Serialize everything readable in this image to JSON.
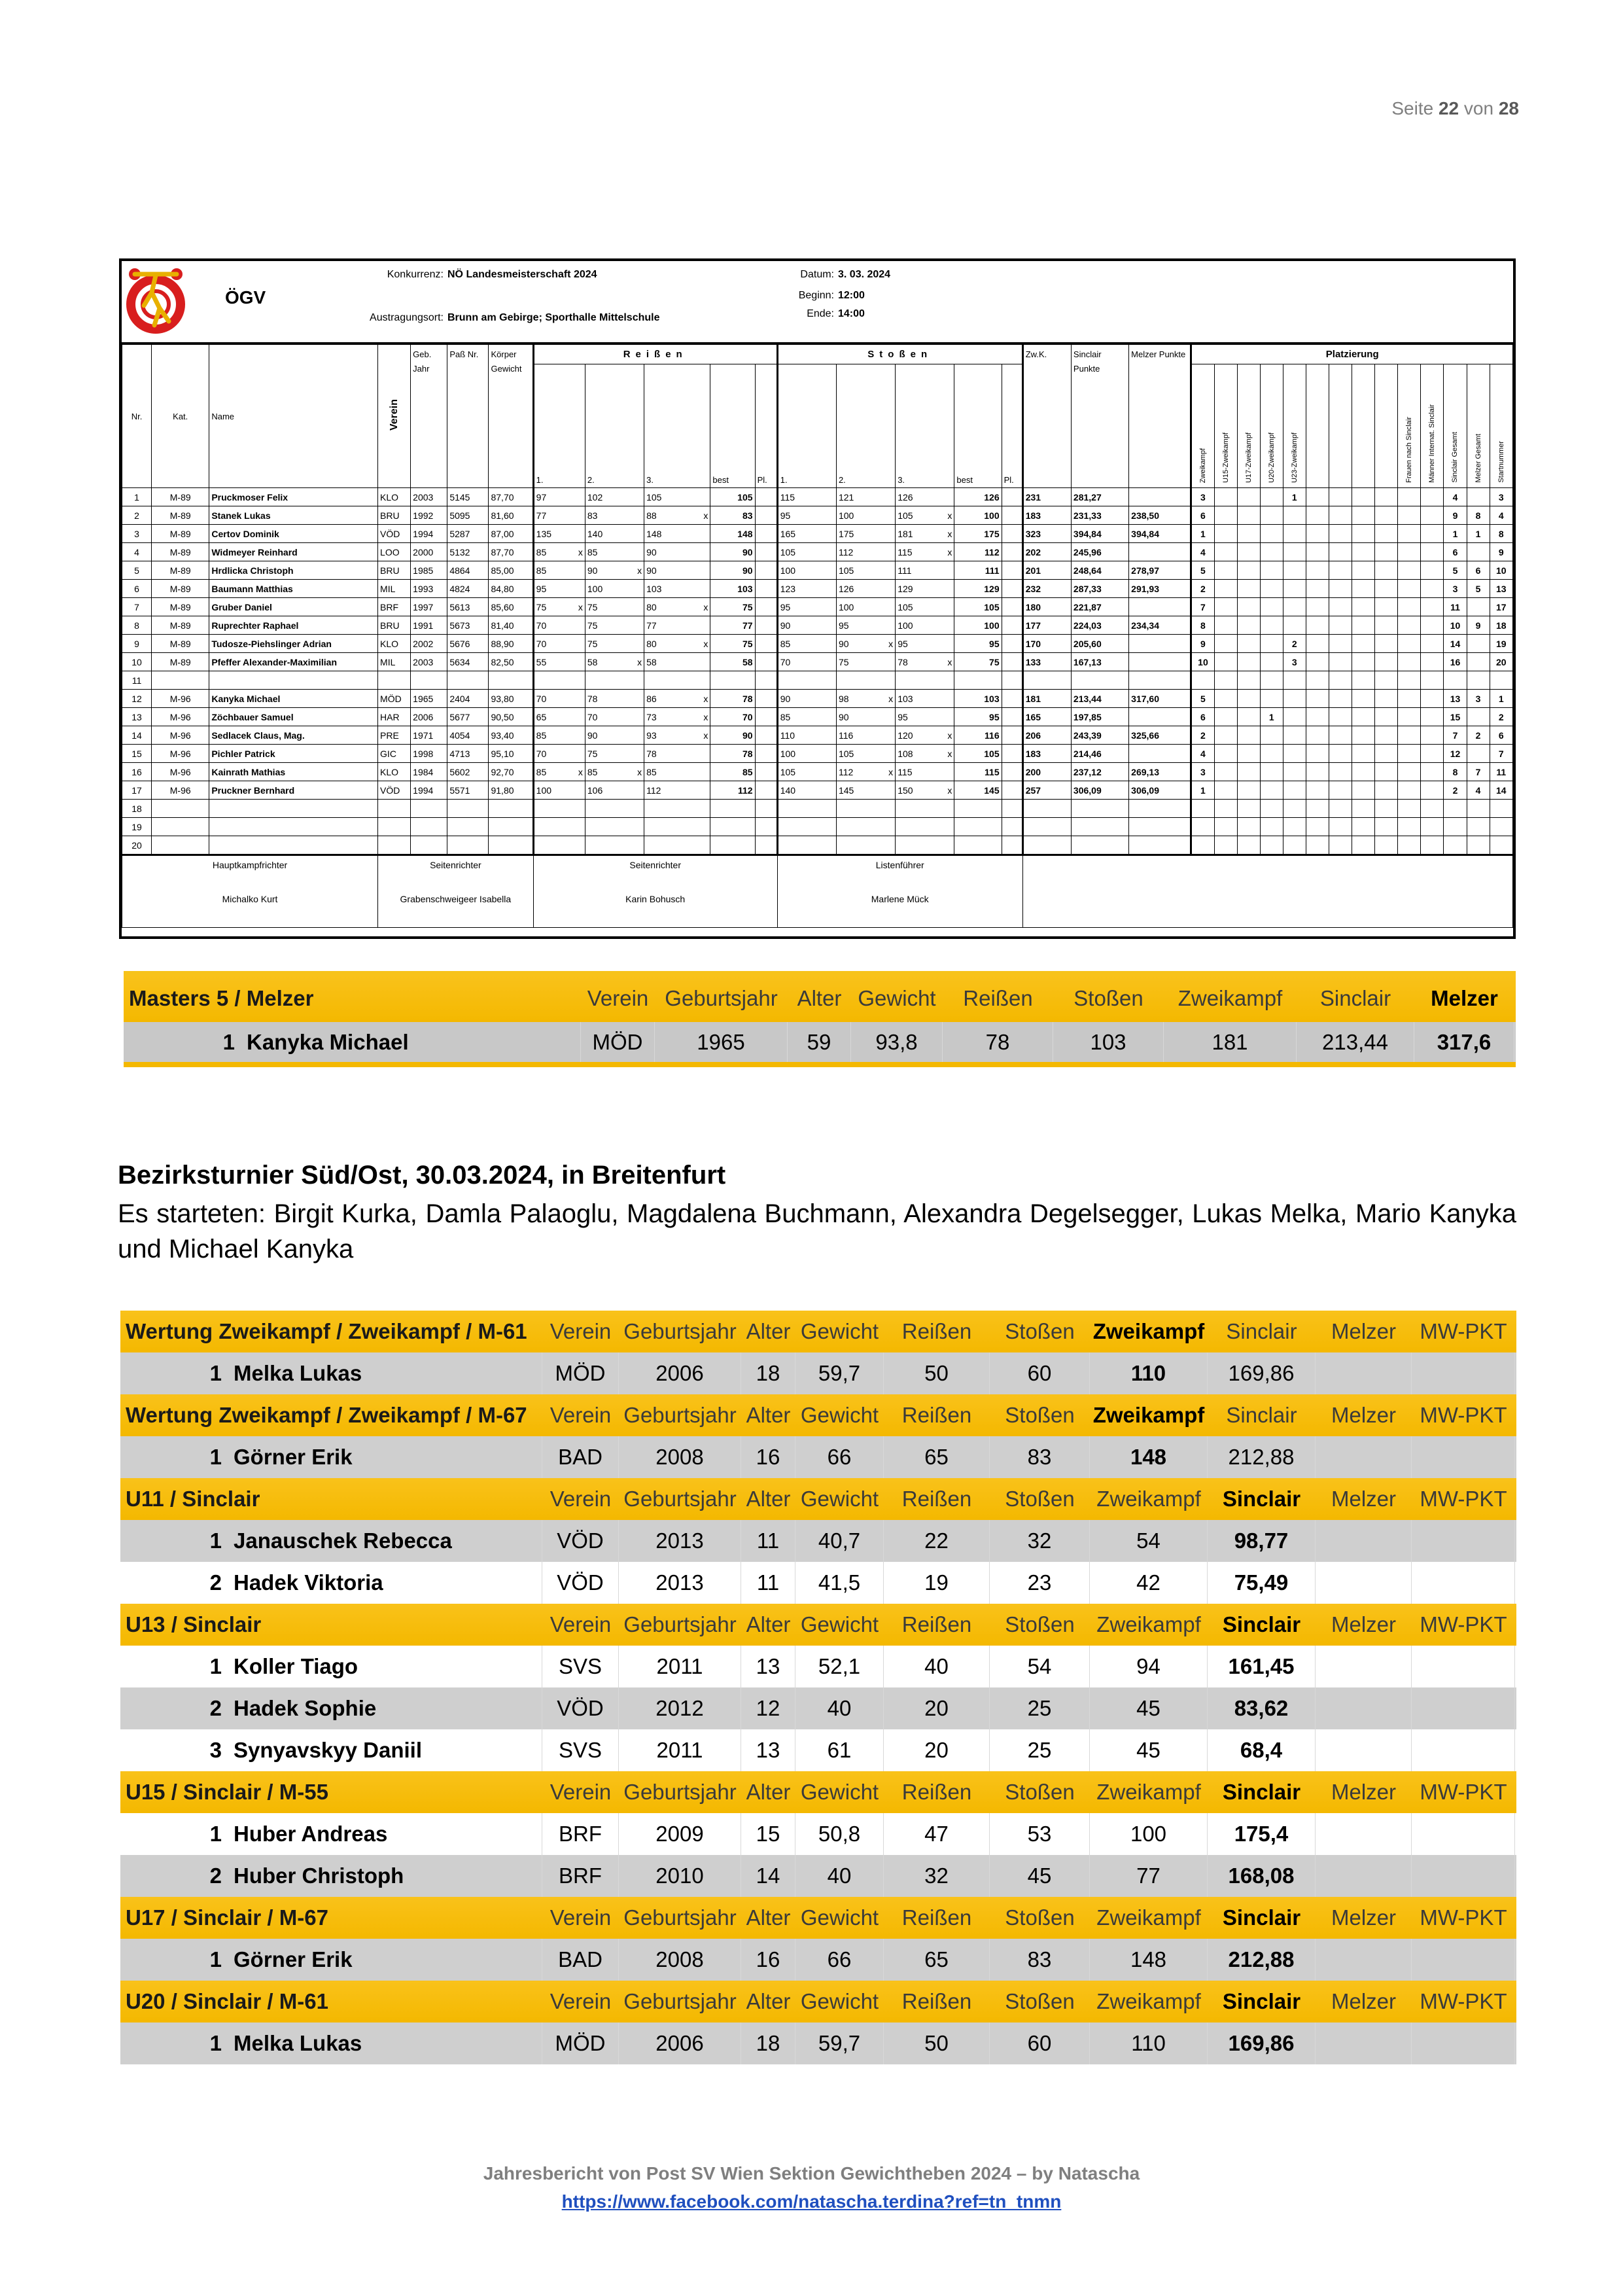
{
  "page": {
    "label": "Seite",
    "current": "22",
    "of": "von",
    "total": "28"
  },
  "protocol": {
    "org": "ÖGV",
    "fields": [
      {
        "label": "Konkurrenz:",
        "value": "NÖ Landesmeisterschaft 2024"
      },
      {
        "label": "Austragungsort:",
        "value": "Brunn am Gebirge; Sporthalle Mittelschule"
      },
      {
        "label": "Datum:",
        "value": "3. 03. 2024"
      },
      {
        "label": "Beginn:",
        "value": "12:00"
      },
      {
        "label": "Ende:",
        "value": "14:00"
      }
    ],
    "head": {
      "nr": "Nr.",
      "kat": "Kat.",
      "name": "Name",
      "verein": "Verein",
      "jahr": "Geb. Jahr",
      "pass": "Paß Nr.",
      "gewicht": "Körper Gewicht",
      "reissen": "Reißen",
      "stossen": "Stoßen",
      "attempts": [
        "1.",
        "2.",
        "3.",
        "best",
        "Pl."
      ],
      "zwk": "Zw.K.",
      "sinclair": "Sinclair Punkte",
      "melzer": "Melzer Punkte",
      "platz": "Platzierung",
      "platz_cols": [
        "Zweikampf",
        "U15-Zweikampf",
        "U17-Zweikampf",
        "U20-Zweikampf",
        "U23-Zweikampf",
        null,
        null,
        null,
        null,
        "Frauen nach Sinclair",
        "Männer Internat. Sinclair",
        "Sinclair Gesamt",
        "Melzer Gesamt",
        "Startnummer"
      ]
    },
    "rows": [
      {
        "cells": [
          "1",
          "M-89",
          "Pruckmoser Felix",
          "KLO",
          "2003",
          "5145",
          "87,70",
          "97",
          "102",
          "105",
          "105",
          null,
          "115",
          "121",
          "126",
          "126",
          null,
          "231",
          "281,27",
          null
        ],
        "platz": [
          "3",
          null,
          null,
          null,
          "1",
          null,
          null,
          null,
          null,
          null,
          null,
          "4",
          null,
          "3"
        ]
      },
      {
        "cells": [
          "2",
          "M-89",
          "Stanek Lukas",
          "BRU",
          "1992",
          "5095",
          "81,60",
          "77",
          "83",
          "88 x",
          "83",
          null,
          "95",
          "100",
          "105 x",
          "100",
          null,
          "183",
          "231,33",
          "238,50"
        ],
        "platz": [
          "6",
          null,
          null,
          null,
          null,
          null,
          null,
          null,
          null,
          null,
          null,
          "9",
          "8",
          "4"
        ]
      },
      {
        "cells": [
          "3",
          "M-89",
          "Certov Dominik",
          "VÖD",
          "1994",
          "5287",
          "87,00",
          "135",
          "140",
          "148",
          "148",
          null,
          "165",
          "175",
          "181 x",
          "175",
          null,
          "323",
          "394,84",
          "394,84"
        ],
        "platz": [
          "1",
          null,
          null,
          null,
          null,
          null,
          null,
          null,
          null,
          null,
          null,
          "1",
          "1",
          "8"
        ]
      },
      {
        "cells": [
          "4",
          "M-89",
          "Widmeyer Reinhard",
          "LOO",
          "2000",
          "5132",
          "87,70",
          "85 x",
          "85",
          "90",
          "90",
          null,
          "105",
          "112",
          "115 x",
          "112",
          null,
          "202",
          "245,96",
          null
        ],
        "platz": [
          "4",
          null,
          null,
          null,
          null,
          null,
          null,
          null,
          null,
          null,
          null,
          "6",
          null,
          "9"
        ]
      },
      {
        "cells": [
          "5",
          "M-89",
          "Hrdlicka Christoph",
          "BRU",
          "1985",
          "4864",
          "85,00",
          "85",
          "90 x",
          "90",
          "90",
          null,
          "100",
          "105",
          "111",
          "111",
          null,
          "201",
          "248,64",
          "278,97"
        ],
        "platz": [
          "5",
          null,
          null,
          null,
          null,
          null,
          null,
          null,
          null,
          null,
          null,
          "5",
          "6",
          "10"
        ]
      },
      {
        "cells": [
          "6",
          "M-89",
          "Baumann Matthias",
          "MIL",
          "1993",
          "4824",
          "84,80",
          "95",
          "100",
          "103",
          "103",
          null,
          "123",
          "126",
          "129",
          "129",
          null,
          "232",
          "287,33",
          "291,93"
        ],
        "platz": [
          "2",
          null,
          null,
          null,
          null,
          null,
          null,
          null,
          null,
          null,
          null,
          "3",
          "5",
          "13"
        ]
      },
      {
        "cells": [
          "7",
          "M-89",
          "Gruber Daniel",
          "BRF",
          "1997",
          "5613",
          "85,60",
          "75 x",
          "75",
          "80 x",
          "75",
          null,
          "95",
          "100",
          "105",
          "105",
          null,
          "180",
          "221,87",
          null
        ],
        "platz": [
          "7",
          null,
          null,
          null,
          null,
          null,
          null,
          null,
          null,
          null,
          null,
          "11",
          null,
          "17"
        ]
      },
      {
        "cells": [
          "8",
          "M-89",
          "Ruprechter Raphael",
          "BRU",
          "1991",
          "5673",
          "81,40",
          "70",
          "75",
          "77",
          "77",
          null,
          "90",
          "95",
          "100",
          "100",
          null,
          "177",
          "224,03",
          "234,34"
        ],
        "platz": [
          "8",
          null,
          null,
          null,
          null,
          null,
          null,
          null,
          null,
          null,
          null,
          "10",
          "9",
          "18"
        ]
      },
      {
        "cells": [
          "9",
          "M-89",
          "Tudosze-Piehslinger Adrian",
          "KLO",
          "2002",
          "5676",
          "88,90",
          "70",
          "75",
          "80 x",
          "75",
          null,
          "85",
          "90 x",
          "95",
          "95",
          null,
          "170",
          "205,60",
          null
        ],
        "platz": [
          "9",
          null,
          null,
          null,
          "2",
          null,
          null,
          null,
          null,
          null,
          null,
          "14",
          null,
          "19"
        ]
      },
      {
        "cells": [
          "10",
          "M-89",
          "Pfeffer Alexander-Maximilian",
          "MIL",
          "2003",
          "5634",
          "82,50",
          "55",
          "58 x",
          "58",
          "58",
          null,
          "70",
          "75",
          "78 x",
          "75",
          null,
          "133",
          "167,13",
          null
        ],
        "platz": [
          "10",
          null,
          null,
          null,
          "3",
          null,
          null,
          null,
          null,
          null,
          null,
          "16",
          null,
          "20"
        ]
      },
      {
        "cells": [
          "11"
        ]
      },
      {
        "cells": [
          "12",
          "M-96",
          "Kanyka Michael",
          "MÖD",
          "1965",
          "2404",
          "93,80",
          "70",
          "78",
          "86 x",
          "78",
          null,
          "90",
          "98 x",
          "103",
          "103",
          null,
          "181",
          "213,44",
          "317,60"
        ],
        "platz": [
          "5",
          null,
          null,
          null,
          null,
          null,
          null,
          null,
          null,
          null,
          null,
          "13",
          "3",
          "1"
        ]
      },
      {
        "cells": [
          "13",
          "M-96",
          "Zöchbauer Samuel",
          "HAR",
          "2006",
          "5677",
          "90,50",
          "65",
          "70",
          "73 x",
          "70",
          null,
          "85",
          "90",
          "95",
          "95",
          null,
          "165",
          "197,85",
          null
        ],
        "platz": [
          "6",
          null,
          null,
          "1",
          null,
          null,
          null,
          null,
          null,
          null,
          null,
          "15",
          null,
          "2"
        ]
      },
      {
        "cells": [
          "14",
          "M-96",
          "Sedlacek Claus, Mag.",
          "PRE",
          "1971",
          "4054",
          "93,40",
          "85",
          "90",
          "93 x",
          "90",
          null,
          "110",
          "116",
          "120 x",
          "116",
          null,
          "206",
          "243,39",
          "325,66"
        ],
        "platz": [
          "2",
          null,
          null,
          null,
          null,
          null,
          null,
          null,
          null,
          null,
          null,
          "7",
          "2",
          "6"
        ]
      },
      {
        "cells": [
          "15",
          "M-96",
          "Pichler Patrick",
          "GIC",
          "1998",
          "4713",
          "95,10",
          "70",
          "75",
          "78",
          "78",
          null,
          "100",
          "105",
          "108 x",
          "105",
          null,
          "183",
          "214,46",
          null
        ],
        "platz": [
          "4",
          null,
          null,
          null,
          null,
          null,
          null,
          null,
          null,
          null,
          null,
          "12",
          null,
          "7"
        ]
      },
      {
        "cells": [
          "16",
          "M-96",
          "Kainrath Mathias",
          "KLO",
          "1984",
          "5602",
          "92,70",
          "85 x",
          "85 x",
          "85",
          "85",
          null,
          "105",
          "112 x",
          "115",
          "115",
          null,
          "200",
          "237,12",
          "269,13"
        ],
        "platz": [
          "3",
          null,
          null,
          null,
          null,
          null,
          null,
          null,
          null,
          null,
          null,
          "8",
          "7",
          "11"
        ]
      },
      {
        "cells": [
          "17",
          "M-96",
          "Pruckner Bernhard",
          "VÖD",
          "1994",
          "5571",
          "91,80",
          "100",
          "106",
          "112",
          "112",
          null,
          "140",
          "145",
          "150 x",
          "145",
          null,
          "257",
          "306,09",
          "306,09"
        ],
        "platz": [
          "1",
          null,
          null,
          null,
          null,
          null,
          null,
          null,
          null,
          null,
          null,
          "2",
          "4",
          "14"
        ]
      },
      {
        "cells": [
          "18"
        ]
      },
      {
        "cells": [
          "19"
        ]
      },
      {
        "cells": [
          "20"
        ]
      }
    ],
    "officials": [
      {
        "role": "Hauptkampfrichter",
        "name": "Michalko Kurt"
      },
      {
        "role": "Seitenrichter",
        "name": "Grabenschweigeer Isabella"
      },
      {
        "role": "Seitenrichter",
        "name": "Karin Bohusch"
      },
      {
        "role": "Listenführer",
        "name": "Marlene Mück"
      }
    ]
  },
  "masters": {
    "title": "Masters 5 / Melzer",
    "bold": "Melzer",
    "columns": [
      "Verein",
      "Geburtsjahr",
      "Alter",
      "Gewicht",
      "Reißen",
      "Stoßen",
      "Zweikampf",
      "Sinclair",
      "Melzer"
    ],
    "rows": [
      {
        "rank": "1",
        "name": "Kanyka Michael",
        "bg": "#c8c8c8",
        "cells": [
          "MÖD",
          "1965",
          "59",
          "93,8",
          "78",
          "103",
          "181",
          "213,44",
          "317,6"
        ]
      }
    ]
  },
  "report": {
    "heading": "Bezirksturnier Süd/Ost, 30.03.2024, in Breitenfurt",
    "text": "Es starteten: Birgit Kurka, Damla Palaoglu, Magdalena Buchmann, Alexandra Degelsegger, Lukas Melka, Mario Kanyka und Michael Kanyka"
  },
  "results": {
    "columns": [
      "Verein",
      "Geburtsjahr",
      "Alter",
      "Gewicht",
      "Reißen",
      "Stoßen",
      "Zweikampf",
      "Sinclair",
      "Melzer",
      "MW-PKT"
    ],
    "sections": [
      {
        "title": "Wertung Zweikampf / Zweikampf / M-61",
        "bold": "Zweikampf",
        "rows": [
          {
            "rank": "1",
            "name": "Melka Lukas",
            "bg": "#cfcfcf",
            "cells": [
              "MÖD",
              "2006",
              "18",
              "59,7",
              "50",
              "60",
              "110",
              "169,86"
            ]
          }
        ]
      },
      {
        "title": "Wertung Zweikampf / Zweikampf / M-67",
        "bold": "Zweikampf",
        "rows": [
          {
            "rank": "1",
            "name": "Görner Erik",
            "bg": "#cfcfcf",
            "cells": [
              "BAD",
              "2008",
              "16",
              "66",
              "65",
              "83",
              "148",
              "212,88"
            ]
          }
        ]
      },
      {
        "title": "U11 / Sinclair",
        "bold": "Sinclair",
        "rows": [
          {
            "rank": "1",
            "name": "Janauschek Rebecca",
            "bg": "#cfcfcf",
            "cells": [
              "VÖD",
              "2013",
              "11",
              "40,7",
              "22",
              "32",
              "54",
              "98,77"
            ]
          },
          {
            "rank": "2",
            "name": "Hadek Viktoria",
            "bg": "#ffffff",
            "cells": [
              "VÖD",
              "2013",
              "11",
              "41,5",
              "19",
              "23",
              "42",
              "75,49"
            ]
          }
        ]
      },
      {
        "title": "U13 / Sinclair",
        "bold": "Sinclair",
        "rows": [
          {
            "rank": "1",
            "name": "Koller Tiago",
            "bg": "#ffffff",
            "cells": [
              "SVS",
              "2011",
              "13",
              "52,1",
              "40",
              "54",
              "94",
              "161,45"
            ]
          },
          {
            "rank": "2",
            "name": "Hadek Sophie",
            "bg": "#cfcfcf",
            "cells": [
              "VÖD",
              "2012",
              "12",
              "40",
              "20",
              "25",
              "45",
              "83,62"
            ]
          },
          {
            "rank": "3",
            "name": "Synyavskyy Daniil",
            "bg": "#ffffff",
            "cells": [
              "SVS",
              "2011",
              "13",
              "61",
              "20",
              "25",
              "45",
              "68,4"
            ]
          }
        ]
      },
      {
        "title": "U15 / Sinclair / M-55",
        "bold": "Sinclair",
        "rows": [
          {
            "rank": "1",
            "name": "Huber Andreas",
            "bg": "#ffffff",
            "cells": [
              "BRF",
              "2009",
              "15",
              "50,8",
              "47",
              "53",
              "100",
              "175,4"
            ]
          },
          {
            "rank": "2",
            "name": "Huber Christoph",
            "bg": "#cfcfcf",
            "cells": [
              "BRF",
              "2010",
              "14",
              "40",
              "32",
              "45",
              "77",
              "168,08"
            ]
          }
        ]
      },
      {
        "title": "U17 / Sinclair / M-67",
        "bold": "Sinclair",
        "rows": [
          {
            "rank": "1",
            "name": "Görner Erik",
            "bg": "#cfcfcf",
            "cells": [
              "BAD",
              "2008",
              "16",
              "66",
              "65",
              "83",
              "148",
              "212,88"
            ]
          }
        ]
      },
      {
        "title": "U20 / Sinclair / M-61",
        "bold": "Sinclair",
        "rows": [
          {
            "rank": "1",
            "name": "Melka Lukas",
            "bg": "#cfcfcf",
            "cells": [
              "MÖD",
              "2006",
              "18",
              "59,7",
              "50",
              "60",
              "110",
              "169,86"
            ]
          }
        ]
      }
    ]
  },
  "footer": {
    "line": "Jahresbericht von Post SV Wien Sektion Gewichtheben 2024 – by Natascha",
    "link": "https://www.facebook.com/natascha.terdina?ref=tn_tnmn"
  }
}
